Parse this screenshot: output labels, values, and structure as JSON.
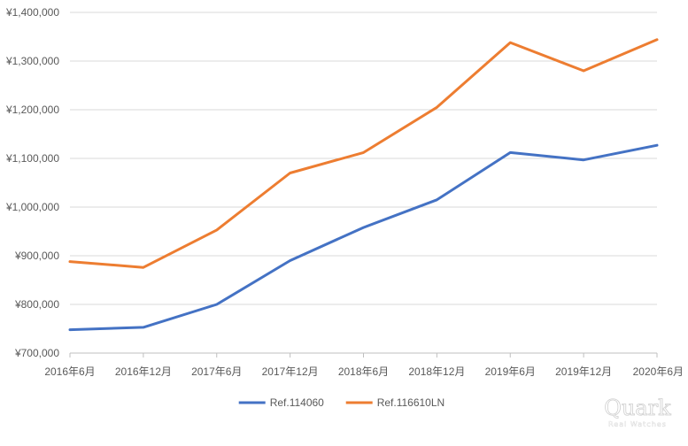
{
  "chart_data": {
    "type": "line",
    "title": "",
    "xlabel": "",
    "ylabel": "",
    "categories": [
      "2016年6月",
      "2016年12月",
      "2017年6月",
      "2017年12月",
      "2018年6月",
      "2018年12月",
      "2019年6月",
      "2019年12月",
      "2020年6月"
    ],
    "y_ticks": [
      "¥700,000",
      "¥800,000",
      "¥900,000",
      "¥1,000,000",
      "¥1,100,000",
      "¥1,200,000",
      "¥1,300,000",
      "¥1,400,000"
    ],
    "ylim": [
      700000,
      1400000
    ],
    "grid": true,
    "legend_position": "bottom",
    "series": [
      {
        "name": "Ref.114060",
        "color": "#4472C4",
        "values": [
          748000,
          753000,
          800000,
          890000,
          958000,
          1015000,
          1112000,
          1097000,
          1127000
        ]
      },
      {
        "name": "Ref.116610LN",
        "color": "#ED7D31",
        "values": [
          888000,
          876000,
          953000,
          1070000,
          1112000,
          1205000,
          1338000,
          1280000,
          1344000
        ]
      }
    ]
  },
  "watermark": {
    "brand": "Quark",
    "tagline": "Real Watches"
  }
}
